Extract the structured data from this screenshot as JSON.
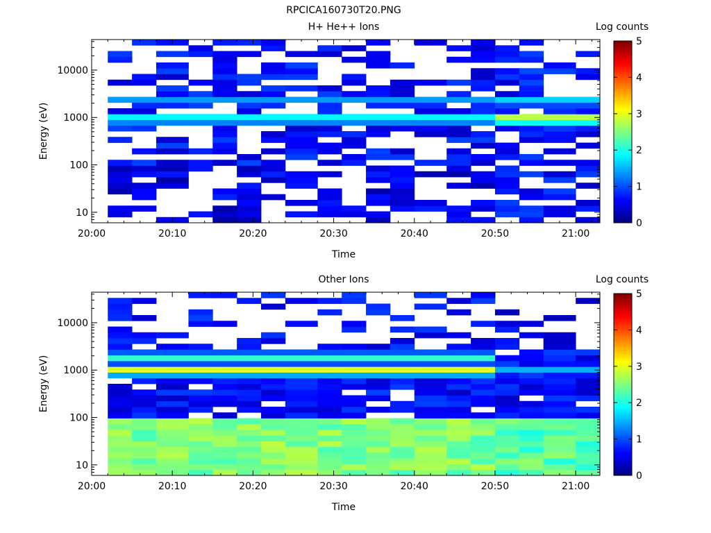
{
  "figure_title": "RPCICA160730T20.PNG",
  "colors": {
    "colormap": [
      "#00007f",
      "#0000ff",
      "#007fff",
      "#00ffff",
      "#7fff7f",
      "#ffff00",
      "#ff7f00",
      "#ff0000",
      "#7f0000"
    ],
    "background": "#ffffff",
    "axes": "#000000"
  },
  "chart_data": [
    {
      "type": "heatmap",
      "title": "H+ He++ Ions",
      "xlabel": "Time",
      "ylabel": "Energy (eV)",
      "xlim": [
        "20:00",
        "21:03"
      ],
      "ylim": [
        6,
        44000
      ],
      "yscale": "log",
      "xticklabels": [
        "20:00",
        "20:10",
        "20:20",
        "20:30",
        "20:40",
        "20:50",
        "21:00"
      ],
      "yticklabels": [
        "10",
        "100",
        "1000",
        "10000"
      ],
      "colorbar": {
        "label": "Log counts",
        "range": [
          0,
          5
        ],
        "ticklabels": [
          "0",
          "1",
          "2",
          "3",
          "4",
          "5"
        ]
      },
      "time_bins_start": [
        "20:02",
        "20:05",
        "20:08",
        "20:12",
        "20:15",
        "20:18",
        "20:21",
        "20:24",
        "20:28",
        "20:31",
        "20:34",
        "20:37",
        "20:40",
        "20:44",
        "20:47",
        "20:50",
        "20:53",
        "20:56",
        "21:00"
      ],
      "profile_by_period": [
        {
          "period": "20:02-20:50",
          "peak_energy_eV": 950,
          "peak_log_counts": 2.0,
          "secondary_band_eV": 2200,
          "secondary_log_counts": 1.5,
          "low_energy_log_counts": 0.2
        },
        {
          "period": "20:50-21:03",
          "peak_energy_eV": 950,
          "peak_log_counts": 3.0,
          "secondary_band_eV": 2200,
          "secondary_log_counts": 1.8,
          "high_energy_log_counts": 0.4
        }
      ],
      "grid": false
    },
    {
      "type": "heatmap",
      "title": "Other Ions",
      "xlabel": "Time",
      "ylabel": "Energy (eV)",
      "xlim": [
        "20:00",
        "21:03"
      ],
      "ylim": [
        6,
        44000
      ],
      "yscale": "log",
      "xticklabels": [
        "20:00",
        "20:10",
        "20:20",
        "20:30",
        "20:40",
        "20:50",
        "21:00"
      ],
      "yticklabels": [
        "10",
        "100",
        "1000",
        "10000"
      ],
      "colorbar": {
        "label": "Log counts",
        "range": [
          0,
          5
        ],
        "ticklabels": [
          "0",
          "1",
          "2",
          "3",
          "4",
          "5"
        ]
      },
      "time_bins_start": [
        "20:02",
        "20:05",
        "20:08",
        "20:12",
        "20:15",
        "20:18",
        "20:21",
        "20:24",
        "20:28",
        "20:31",
        "20:34",
        "20:37",
        "20:40",
        "20:44",
        "20:47",
        "20:50",
        "20:53",
        "20:56",
        "21:00"
      ],
      "profile_by_period": [
        {
          "period": "20:02-20:50",
          "peak_energy_eV": 1000,
          "peak_log_counts": 3.0,
          "secondary_band_eV": 1900,
          "secondary_log_counts": 2.2,
          "low_energy_band_eV": 35,
          "low_energy_log_counts": 2.2
        },
        {
          "period": "20:50-21:03",
          "peak_energy_eV": 1000,
          "peak_log_counts": 1.5,
          "low_energy_band_eV": 35,
          "low_energy_log_counts": 2.0,
          "high_energy_log_counts": 0.2
        }
      ],
      "grid": false
    }
  ]
}
